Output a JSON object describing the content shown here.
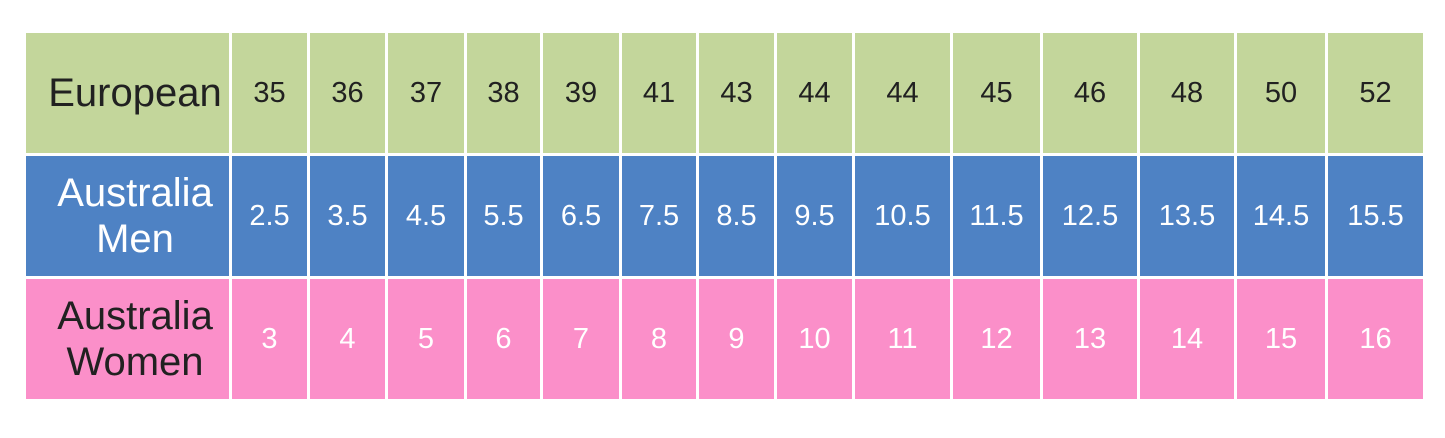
{
  "chart_data": {
    "type": "table",
    "rows": [
      {
        "label": "European",
        "values": [
          "35",
          "36",
          "37",
          "38",
          "39",
          "41",
          "43",
          "44",
          "44",
          "45",
          "46",
          "48",
          "50",
          "52"
        ]
      },
      {
        "label": "Australia Men",
        "values": [
          "2.5",
          "3.5",
          "4.5",
          "5.5",
          "6.5",
          "7.5",
          "8.5",
          "9.5",
          "10.5",
          "11.5",
          "12.5",
          "13.5",
          "14.5",
          "15.5"
        ]
      },
      {
        "label": "Australia Women",
        "values": [
          "3",
          "4",
          "5",
          "6",
          "7",
          "8",
          "9",
          "10",
          "11",
          "12",
          "13",
          "14",
          "15",
          "16"
        ]
      }
    ],
    "colors": {
      "european_row_bg": "#c3d69b",
      "australia_men_row_bg": "#4e82c4",
      "australia_women_row_bg": "#fb8fc9",
      "dark_text": "#212121",
      "light_text": "#ffffff",
      "gridline": "#ffffff"
    },
    "layout_hints": {
      "grid": "white gridlines between cells",
      "header_column": "row labels on left"
    }
  }
}
